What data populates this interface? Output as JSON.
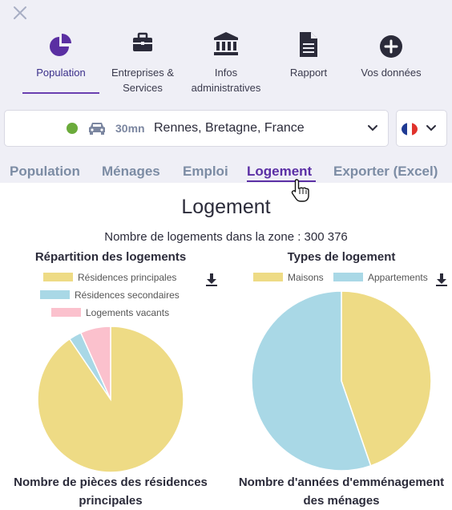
{
  "nav": {
    "items": [
      {
        "label": "Population",
        "icon": "pie-chart-icon"
      },
      {
        "label": "Entreprises & Services",
        "icon": "briefcase-icon"
      },
      {
        "label": "Infos administratives",
        "icon": "institution-icon"
      },
      {
        "label": "Rapport",
        "icon": "document-icon"
      },
      {
        "label": "Vos données",
        "icon": "plus-circle-icon"
      }
    ]
  },
  "location": {
    "minutes": "30mn",
    "place": "Rennes, Bretagne, France",
    "status_color": "#6bab3b"
  },
  "tabs": [
    "Population",
    "Ménages",
    "Emploi",
    "Logement",
    "Exporter (Excel)"
  ],
  "page": {
    "title": "Logement",
    "subtitle": "Nombre de logements dans la zone : 300 376"
  },
  "chart_data": [
    {
      "type": "pie",
      "title": "Répartition des logements",
      "categories": [
        "Résidences principales",
        "Résidences secondaires",
        "Logements vacants"
      ],
      "values": [
        90.5,
        2.8,
        6.7
      ],
      "colors": [
        "#eedb85",
        "#a9d8e6",
        "#fbc1cd"
      ],
      "legend": "top"
    },
    {
      "type": "pie",
      "title": "Types de logement",
      "categories": [
        "Maisons",
        "Appartements"
      ],
      "values": [
        44.7,
        55.3
      ],
      "colors": [
        "#eedb85",
        "#a9d8e6"
      ],
      "legend": "top"
    }
  ],
  "bottom": {
    "left_title": "Nombre de pièces des résidences principales",
    "right_title": "Nombre d'années d'emménagement des ménages"
  }
}
